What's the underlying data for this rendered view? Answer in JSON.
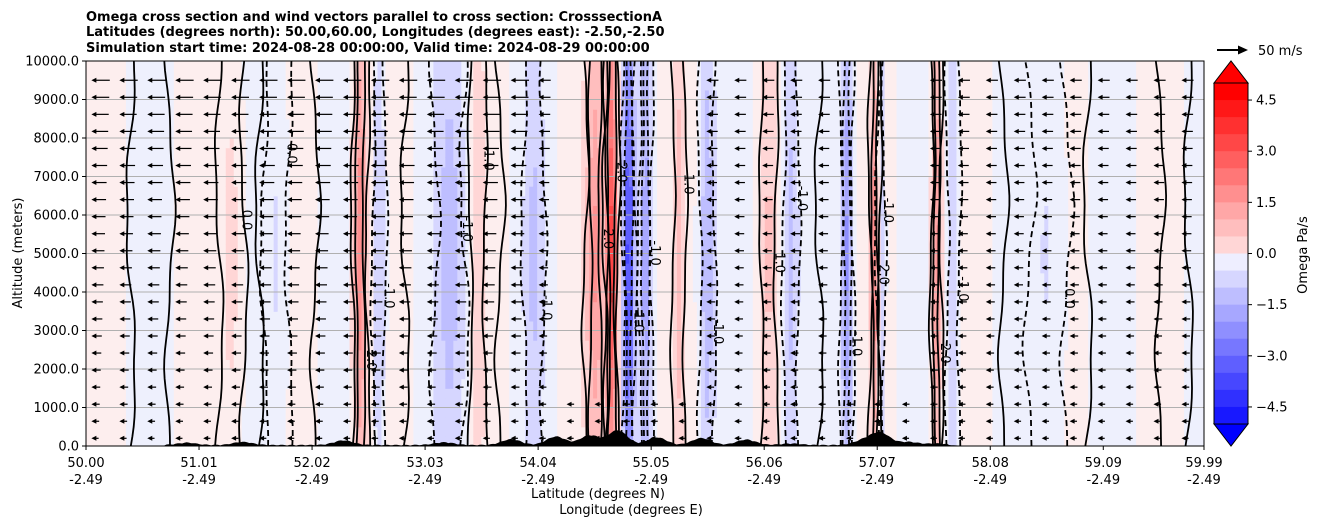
{
  "chart_data": {
    "type": "heatmap",
    "title_lines": [
      "Omega cross section and wind vectors parallel to cross section: CrosssectionA",
      "Latitudes (degrees north): 50.00,60.00, Longitudes (degrees east): -2.50,-2.50",
      "Simulation start time: 2024-08-28 00:00:00, Valid time: 2024-08-29 00:00:00"
    ],
    "xlabel_lat": "Latitude (degrees N)",
    "xlabel_lon": "Longitude (degrees E)",
    "ylabel": "Altitude (meters)",
    "x_ticks": [
      {
        "lat": "50.00",
        "lon": "-2.49",
        "value": 50.0
      },
      {
        "lat": "51.01",
        "lon": "-2.49",
        "value": 51.01
      },
      {
        "lat": "52.02",
        "lon": "-2.49",
        "value": 52.02
      },
      {
        "lat": "53.03",
        "lon": "-2.49",
        "value": 53.03
      },
      {
        "lat": "54.04",
        "lon": "-2.49",
        "value": 54.04
      },
      {
        "lat": "55.05",
        "lon": "-2.49",
        "value": 55.05
      },
      {
        "lat": "56.06",
        "lon": "-2.49",
        "value": 56.06
      },
      {
        "lat": "57.07",
        "lon": "-2.49",
        "value": 57.07
      },
      {
        "lat": "58.08",
        "lon": "-2.49",
        "value": 58.08
      },
      {
        "lat": "59.09",
        "lon": "-2.49",
        "value": 59.09
      },
      {
        "lat": "59.99",
        "lon": "-2.49",
        "value": 59.99
      }
    ],
    "xlim": [
      50.0,
      59.99
    ],
    "y_ticks": [
      "0.0",
      "1000.0",
      "2000.0",
      "3000.0",
      "4000.0",
      "5000.0",
      "6000.0",
      "7000.0",
      "8000.0",
      "9000.0",
      "10000.0"
    ],
    "ylim": [
      0,
      10000
    ],
    "grid": "horizontal",
    "colorbar": {
      "label": "Omega Pa/s",
      "ticks": [
        "4.5",
        "3.0",
        "1.5",
        "0.0",
        "−1.5",
        "−3.0",
        "−4.5"
      ],
      "range": [
        -5.0,
        5.0
      ],
      "extend": "both",
      "color_positive": "#ff0000",
      "color_negative": "#0000ff"
    },
    "vector_key": {
      "label": "50 m/s"
    },
    "contour_labels": [
      "0.0",
      "1.0",
      "-1.0",
      "2.0"
    ],
    "features": [
      {
        "lat": 52.45,
        "width": 0.06,
        "omega": 2.2
      },
      {
        "lat": 52.62,
        "width": 0.05,
        "omega": -0.8
      },
      {
        "lat": 53.25,
        "width": 0.12,
        "omega": -1.0
      },
      {
        "lat": 53.5,
        "width": 0.06,
        "omega": 0.6
      },
      {
        "lat": 54.0,
        "width": 0.08,
        "omega": -0.8
      },
      {
        "lat": 54.55,
        "width": 0.08,
        "omega": 1.8
      },
      {
        "lat": 54.7,
        "width": 0.05,
        "omega": 3.5
      },
      {
        "lat": 54.85,
        "width": 0.05,
        "omega": -3.5
      },
      {
        "lat": 55.0,
        "width": 0.05,
        "omega": -1.6
      },
      {
        "lat": 55.3,
        "width": 0.05,
        "omega": 1.0
      },
      {
        "lat": 55.55,
        "width": 0.06,
        "omega": -1.2
      },
      {
        "lat": 56.1,
        "width": 0.06,
        "omega": 0.8
      },
      {
        "lat": 56.3,
        "width": 0.06,
        "omega": -1.0
      },
      {
        "lat": 56.8,
        "width": 0.05,
        "omega": -1.8
      },
      {
        "lat": 57.05,
        "width": 0.04,
        "omega": 2.0
      },
      {
        "lat": 57.1,
        "width": 0.03,
        "omega": -1.2
      },
      {
        "lat": 57.6,
        "width": 0.04,
        "omega": 2.2
      },
      {
        "lat": 57.75,
        "width": 0.05,
        "omega": -0.7
      },
      {
        "lat": 51.3,
        "width": 0.1,
        "omega": 0.4
      },
      {
        "lat": 51.7,
        "width": 0.1,
        "omega": -0.3
      },
      {
        "lat": 58.6,
        "width": 0.15,
        "omega": -0.3
      }
    ],
    "terrain_peaks": [
      {
        "lat": 50.9,
        "height": 60
      },
      {
        "lat": 51.4,
        "height": 80
      },
      {
        "lat": 52.3,
        "height": 120
      },
      {
        "lat": 53.2,
        "height": 70
      },
      {
        "lat": 53.8,
        "height": 150
      },
      {
        "lat": 54.2,
        "height": 220
      },
      {
        "lat": 54.5,
        "height": 250
      },
      {
        "lat": 54.75,
        "height": 380
      },
      {
        "lat": 55.1,
        "height": 200
      },
      {
        "lat": 55.5,
        "height": 180
      },
      {
        "lat": 55.9,
        "height": 140
      },
      {
        "lat": 56.3,
        "height": 40
      },
      {
        "lat": 56.95,
        "height": 120
      },
      {
        "lat": 57.1,
        "height": 310
      },
      {
        "lat": 57.35,
        "height": 80
      },
      {
        "lat": 57.6,
        "height": 40
      }
    ]
  }
}
